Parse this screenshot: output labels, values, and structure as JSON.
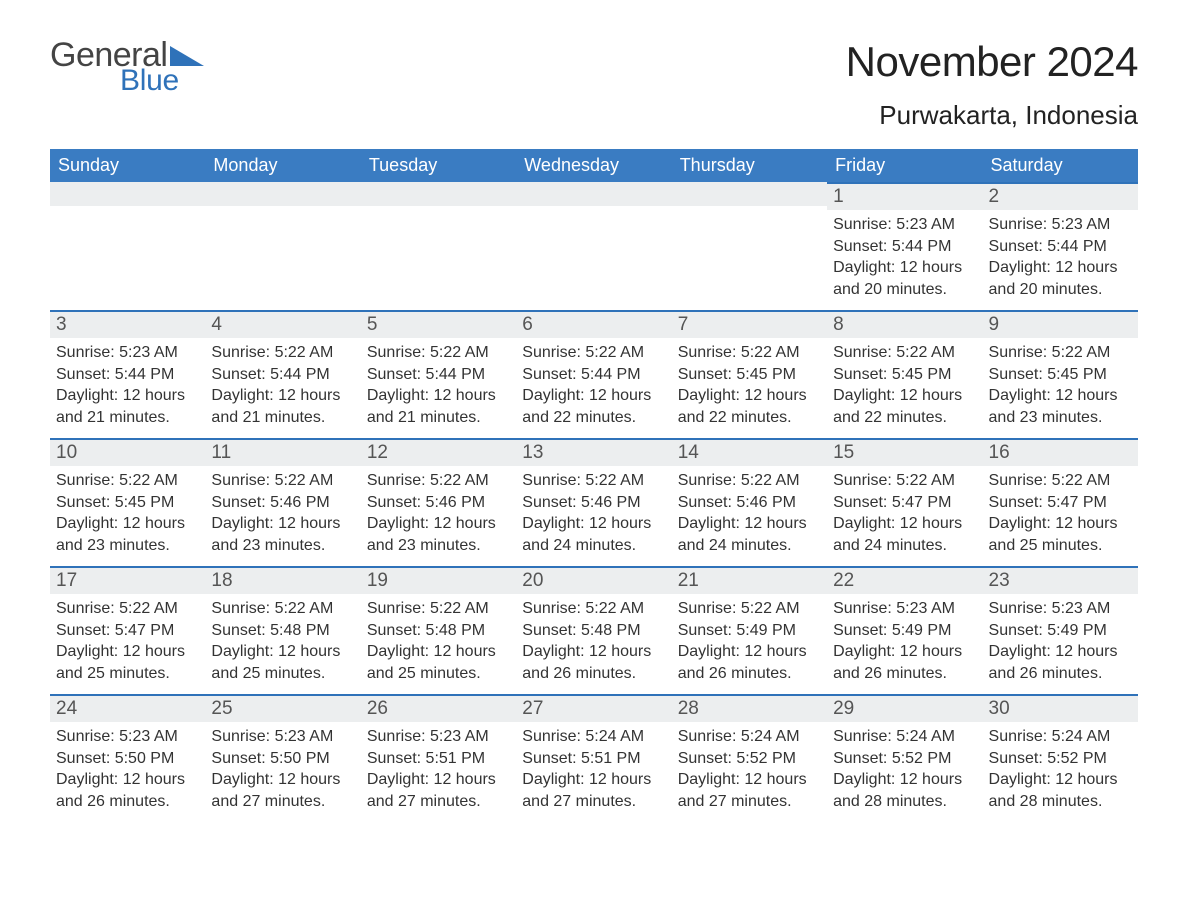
{
  "brand": {
    "word1": "General",
    "word2": "Blue",
    "accent": "#2f72b9",
    "textColor": "#444444"
  },
  "title": "November 2024",
  "location": "Purwakarta, Indonesia",
  "colors": {
    "headerBg": "#3a7cc2",
    "headerText": "#ffffff",
    "rowBg": "#eceeef",
    "ruleColor": "#2f72b9",
    "pageBg": "#ffffff",
    "bodyText": "#333333"
  },
  "fontFamily": "Arial",
  "columns": [
    "Sunday",
    "Monday",
    "Tuesday",
    "Wednesday",
    "Thursday",
    "Friday",
    "Saturday"
  ],
  "labels": {
    "sunrise": "Sunrise:",
    "sunset": "Sunset:",
    "daylight": "Daylight:"
  },
  "firstDayColumnIndex": 5,
  "weeks": [
    [
      null,
      null,
      null,
      null,
      null,
      {
        "n": "1",
        "sunrise": "5:23 AM",
        "sunset": "5:44 PM",
        "daylight": "12 hours and 20 minutes."
      },
      {
        "n": "2",
        "sunrise": "5:23 AM",
        "sunset": "5:44 PM",
        "daylight": "12 hours and 20 minutes."
      }
    ],
    [
      {
        "n": "3",
        "sunrise": "5:23 AM",
        "sunset": "5:44 PM",
        "daylight": "12 hours and 21 minutes."
      },
      {
        "n": "4",
        "sunrise": "5:22 AM",
        "sunset": "5:44 PM",
        "daylight": "12 hours and 21 minutes."
      },
      {
        "n": "5",
        "sunrise": "5:22 AM",
        "sunset": "5:44 PM",
        "daylight": "12 hours and 21 minutes."
      },
      {
        "n": "6",
        "sunrise": "5:22 AM",
        "sunset": "5:44 PM",
        "daylight": "12 hours and 22 minutes."
      },
      {
        "n": "7",
        "sunrise": "5:22 AM",
        "sunset": "5:45 PM",
        "daylight": "12 hours and 22 minutes."
      },
      {
        "n": "8",
        "sunrise": "5:22 AM",
        "sunset": "5:45 PM",
        "daylight": "12 hours and 22 minutes."
      },
      {
        "n": "9",
        "sunrise": "5:22 AM",
        "sunset": "5:45 PM",
        "daylight": "12 hours and 23 minutes."
      }
    ],
    [
      {
        "n": "10",
        "sunrise": "5:22 AM",
        "sunset": "5:45 PM",
        "daylight": "12 hours and 23 minutes."
      },
      {
        "n": "11",
        "sunrise": "5:22 AM",
        "sunset": "5:46 PM",
        "daylight": "12 hours and 23 minutes."
      },
      {
        "n": "12",
        "sunrise": "5:22 AM",
        "sunset": "5:46 PM",
        "daylight": "12 hours and 23 minutes."
      },
      {
        "n": "13",
        "sunrise": "5:22 AM",
        "sunset": "5:46 PM",
        "daylight": "12 hours and 24 minutes."
      },
      {
        "n": "14",
        "sunrise": "5:22 AM",
        "sunset": "5:46 PM",
        "daylight": "12 hours and 24 minutes."
      },
      {
        "n": "15",
        "sunrise": "5:22 AM",
        "sunset": "5:47 PM",
        "daylight": "12 hours and 24 minutes."
      },
      {
        "n": "16",
        "sunrise": "5:22 AM",
        "sunset": "5:47 PM",
        "daylight": "12 hours and 25 minutes."
      }
    ],
    [
      {
        "n": "17",
        "sunrise": "5:22 AM",
        "sunset": "5:47 PM",
        "daylight": "12 hours and 25 minutes."
      },
      {
        "n": "18",
        "sunrise": "5:22 AM",
        "sunset": "5:48 PM",
        "daylight": "12 hours and 25 minutes."
      },
      {
        "n": "19",
        "sunrise": "5:22 AM",
        "sunset": "5:48 PM",
        "daylight": "12 hours and 25 minutes."
      },
      {
        "n": "20",
        "sunrise": "5:22 AM",
        "sunset": "5:48 PM",
        "daylight": "12 hours and 26 minutes."
      },
      {
        "n": "21",
        "sunrise": "5:22 AM",
        "sunset": "5:49 PM",
        "daylight": "12 hours and 26 minutes."
      },
      {
        "n": "22",
        "sunrise": "5:23 AM",
        "sunset": "5:49 PM",
        "daylight": "12 hours and 26 minutes."
      },
      {
        "n": "23",
        "sunrise": "5:23 AM",
        "sunset": "5:49 PM",
        "daylight": "12 hours and 26 minutes."
      }
    ],
    [
      {
        "n": "24",
        "sunrise": "5:23 AM",
        "sunset": "5:50 PM",
        "daylight": "12 hours and 26 minutes."
      },
      {
        "n": "25",
        "sunrise": "5:23 AM",
        "sunset": "5:50 PM",
        "daylight": "12 hours and 27 minutes."
      },
      {
        "n": "26",
        "sunrise": "5:23 AM",
        "sunset": "5:51 PM",
        "daylight": "12 hours and 27 minutes."
      },
      {
        "n": "27",
        "sunrise": "5:24 AM",
        "sunset": "5:51 PM",
        "daylight": "12 hours and 27 minutes."
      },
      {
        "n": "28",
        "sunrise": "5:24 AM",
        "sunset": "5:52 PM",
        "daylight": "12 hours and 27 minutes."
      },
      {
        "n": "29",
        "sunrise": "5:24 AM",
        "sunset": "5:52 PM",
        "daylight": "12 hours and 28 minutes."
      },
      {
        "n": "30",
        "sunrise": "5:24 AM",
        "sunset": "5:52 PM",
        "daylight": "12 hours and 28 minutes."
      }
    ]
  ]
}
